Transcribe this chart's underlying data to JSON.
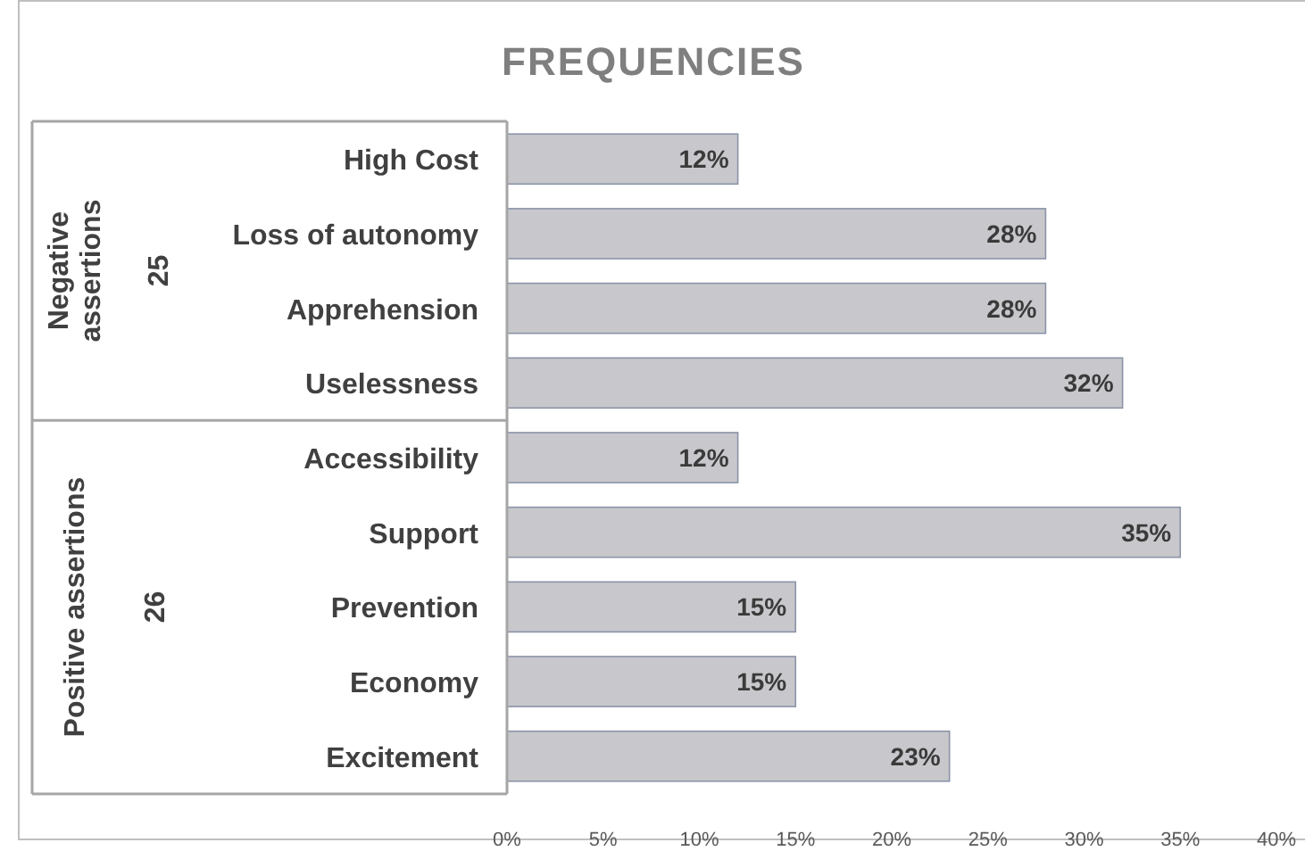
{
  "chart_data": {
    "type": "bar",
    "orientation": "horizontal",
    "title": "FREQUENCIES",
    "categories": [
      "High Cost",
      "Loss of autonomy",
      "Apprehension",
      "Uselessness",
      "Accessibility",
      "Support",
      "Prevention",
      "Economy",
      "Excitement"
    ],
    "values": [
      12,
      28,
      28,
      32,
      12,
      35,
      15,
      15,
      23
    ],
    "value_labels": [
      "12%",
      "28%",
      "28%",
      "32%",
      "12%",
      "35%",
      "15%",
      "15%",
      "23%"
    ],
    "color": "#c8c8cc",
    "xlim": [
      0,
      40
    ],
    "xticks": [
      {
        "value": 0,
        "label": "0%"
      },
      {
        "value": 5,
        "label": "5%"
      },
      {
        "value": 10,
        "label": "10%"
      },
      {
        "value": 15,
        "label": "15%"
      },
      {
        "value": 20,
        "label": "20%"
      },
      {
        "value": 25,
        "label": "25%"
      },
      {
        "value": 30,
        "label": "30%"
      },
      {
        "value": 35,
        "label": "35%"
      },
      {
        "value": 40,
        "label": "40%"
      }
    ],
    "grid": false,
    "annotations": [
      "Negative assertions",
      "25",
      "Positive assertions",
      "26"
    ]
  }
}
